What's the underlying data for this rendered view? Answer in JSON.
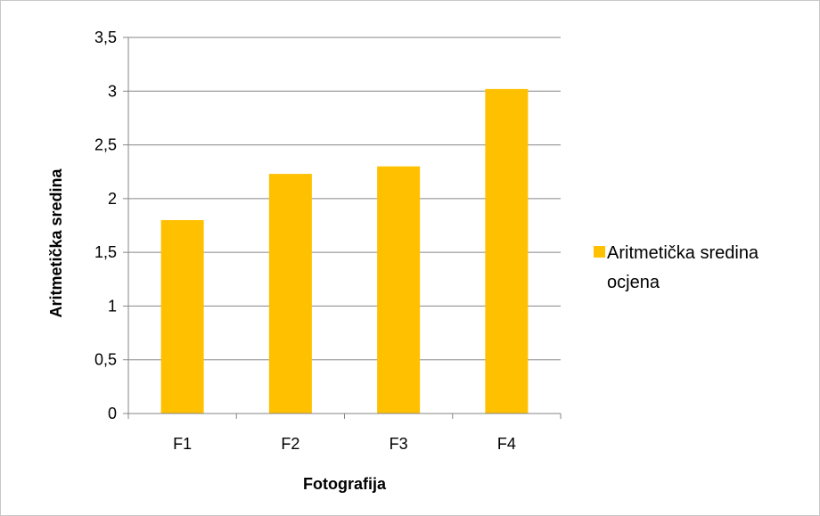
{
  "chart_data": {
    "type": "bar",
    "categories": [
      "F1",
      "F2",
      "F3",
      "F4"
    ],
    "series": [
      {
        "name": "Aritmetička sredina ocjena",
        "values": [
          1.8,
          2.23,
          2.3,
          3.02
        ],
        "color": "#FFC000"
      }
    ],
    "title": "",
    "xlabel": "Fotografija",
    "ylabel": "Aritmetička sredina",
    "ylim": [
      0,
      3.5
    ],
    "yticks": [
      "0",
      "0,5",
      "1",
      "1,5",
      "2",
      "2,5",
      "3",
      "3,5"
    ],
    "grid": true,
    "legend": {
      "position": "right",
      "lines": [
        "Aritmetička sredina",
        "ocjena"
      ]
    }
  }
}
